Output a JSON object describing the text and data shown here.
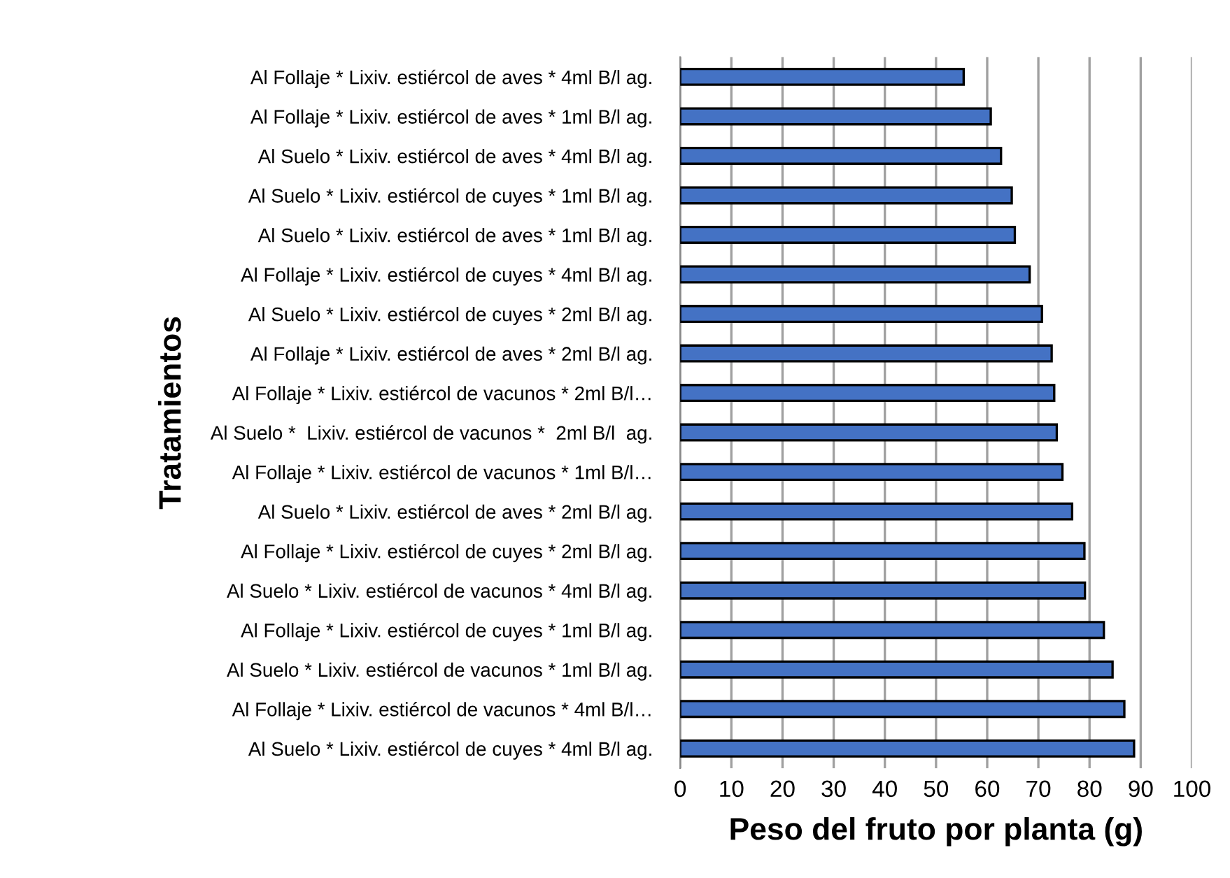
{
  "chart_data": {
    "type": "bar",
    "orientation": "horizontal",
    "xlabel": "Peso del fruto por planta (g)",
    "ylabel": "Tratamientos",
    "categories": [
      "Al Follaje * Lixiv. estiércol de aves * 4ml B/l ag.",
      "Al Follaje * Lixiv. estiércol de aves * 1ml B/l ag.",
      "Al Suelo * Lixiv. estiércol de aves * 4ml B/l ag.",
      "Al Suelo * Lixiv. estiércol de cuyes * 1ml B/l ag.",
      "Al Suelo * Lixiv. estiércol de aves * 1ml B/l ag.",
      "Al Follaje * Lixiv. estiércol de cuyes * 4ml B/l ag.",
      "Al Suelo * Lixiv. estiércol de cuyes * 2ml B/l ag.",
      "Al Follaje * Lixiv. estiércol de aves * 2ml B/l ag.",
      "Al Follaje * Lixiv. estiércol de vacunos * 2ml B/l…",
      "Al Suelo *  Lixiv. estiércol de vacunos *  2ml B/l  ag.",
      "Al Follaje * Lixiv. estiércol de vacunos * 1ml B/l…",
      "Al Suelo * Lixiv. estiércol de aves * 2ml B/l ag.",
      "Al Follaje * Lixiv. estiércol de cuyes * 2ml B/l ag.",
      "Al Suelo * Lixiv. estiércol de vacunos * 4ml B/l ag.",
      "Al Follaje * Lixiv. estiércol de cuyes * 1ml B/l ag.",
      "Al Suelo * Lixiv. estiércol de vacunos * 1ml B/l ag.",
      "Al Follaje * Lixiv. estiércol de vacunos * 4ml B/l…",
      "Al Suelo * Lixiv. estiércol de cuyes * 4ml B/l ag."
    ],
    "values": [
      55.4,
      60.7,
      62.7,
      64.8,
      65.4,
      68.3,
      70.7,
      72.6,
      73.1,
      73.6,
      74.7,
      76.6,
      79.0,
      79.1,
      82.8,
      84.5,
      86.8,
      88.7
    ],
    "color": "#4472c4",
    "xlim": [
      0,
      100
    ],
    "xticks": [
      0,
      10,
      20,
      30,
      40,
      50,
      60,
      70,
      80,
      90,
      100
    ],
    "grid": "x"
  }
}
